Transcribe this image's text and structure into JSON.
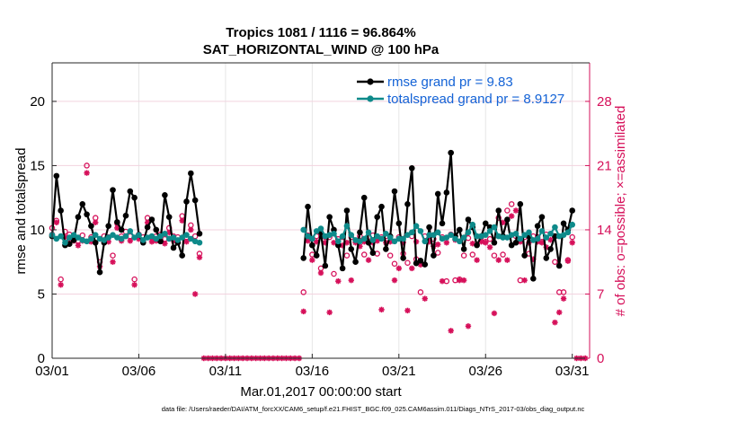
{
  "chart_data": {
    "type": "line",
    "title": "Tropics 1081 / 1116 = 96.864%",
    "subtitle": "SAT_HORIZONTAL_WIND @ 100 hPa",
    "xlabel": "Mar.01,2017 00:00:00 start",
    "ylabel": "rmse and totalspread",
    "y2label": "# of obs: o=possible; ×=assimilated",
    "footnote": "data file: /Users/raeder/DAI/ATM_forcXX/CAM6_setup/f.e21.FHIST_BGC.f09_025.CAM6assim.011/Diags_NTrS_2017-03/obs_diag_output.nc",
    "xticks": [
      1,
      6,
      11,
      16,
      21,
      26,
      31
    ],
    "xtick_labels": [
      "03/01",
      "03/06",
      "03/11",
      "03/16",
      "03/21",
      "03/26",
      "03/31"
    ],
    "xlim": [
      1,
      32
    ],
    "ylim": [
      0,
      23
    ],
    "yticks": [
      0,
      5,
      10,
      15,
      20
    ],
    "y2lim": [
      0,
      32.2
    ],
    "y2ticks": [
      0,
      7,
      14,
      21,
      28
    ],
    "legend": {
      "location": "top-right",
      "entries": [
        "rmse grand pr = 9.83",
        "totalspread grand pr = 8.9127"
      ]
    },
    "colors": {
      "rmse": "#000000",
      "spread": "#0e8a8a",
      "obs": "#d6105a",
      "legend_text": "#1463d6"
    },
    "series": [
      {
        "name": "rmse",
        "x": [
          1.0,
          1.25,
          1.5,
          1.75,
          2.0,
          2.25,
          2.5,
          2.75,
          3.0,
          3.25,
          3.5,
          3.75,
          4.0,
          4.25,
          4.5,
          4.75,
          5.0,
          5.25,
          5.5,
          5.75,
          6.0,
          6.25,
          6.5,
          6.75,
          7.0,
          7.25,
          7.5,
          7.75,
          8.0,
          8.25,
          8.5,
          8.75,
          9.0,
          9.25,
          9.5
        ],
        "values": [
          9.5,
          14.2,
          11.5,
          8.8,
          8.9,
          9.2,
          11.0,
          12.0,
          11.2,
          10.3,
          9.0,
          6.7,
          9.0,
          10.3,
          13.1,
          10.6,
          10.0,
          11.1,
          13.0,
          12.5,
          9.6,
          9.0,
          10.2,
          10.8,
          10.0,
          9.1,
          12.7,
          11.0,
          8.6,
          9.0,
          8.0,
          12.2,
          14.4,
          12.3,
          9.7
        ],
        "segments": [
          [
            0,
            34
          ]
        ]
      },
      {
        "name": "totalspread",
        "x": [
          1.0,
          1.25,
          1.5,
          1.75,
          2.0,
          2.25,
          2.5,
          2.75,
          3.0,
          3.25,
          3.5,
          3.75,
          4.0,
          4.25,
          4.5,
          4.75,
          5.0,
          5.25,
          5.5,
          5.75,
          6.0,
          6.25,
          6.5,
          6.75,
          7.0,
          7.25,
          7.5,
          7.75,
          8.0,
          8.25,
          8.5,
          8.75,
          9.0,
          9.25,
          9.5
        ],
        "values": [
          9.6,
          9.3,
          9.5,
          9.0,
          9.4,
          9.6,
          9.4,
          9.2,
          9.1,
          9.3,
          9.6,
          9.3,
          9.2,
          9.4,
          9.6,
          9.4,
          9.3,
          9.5,
          9.9,
          9.4,
          9.6,
          9.2,
          9.4,
          9.5,
          9.3,
          9.5,
          9.7,
          9.3,
          9.4,
          9.2,
          9.4,
          9.6,
          9.3,
          9.1,
          9.0
        ],
        "segments": [
          [
            0,
            34
          ]
        ]
      },
      {
        "name": "rmse",
        "x": [
          15.5,
          15.75,
          16.0,
          16.25,
          16.5,
          16.75,
          17.0,
          17.25,
          17.5,
          17.75,
          18.0,
          18.25,
          18.5,
          18.75,
          19.0,
          19.25,
          19.5,
          19.75,
          20.0,
          20.25,
          20.5,
          20.75,
          21.0,
          21.25,
          21.5,
          21.75,
          22.0,
          22.25,
          22.5,
          22.75,
          23.0,
          23.25,
          23.5,
          23.75,
          24.0,
          24.25,
          24.5,
          24.75,
          25.0,
          25.25,
          25.5,
          25.75,
          26.0,
          26.25,
          26.5,
          26.75,
          27.0,
          27.25,
          27.5,
          27.75,
          28.0,
          28.25,
          28.5,
          28.75,
          29.0,
          29.25,
          29.5,
          29.75,
          30.0,
          30.25,
          30.5,
          30.75,
          31.0
        ],
        "values": [
          7.8,
          11.8,
          8.8,
          8.0,
          9.8,
          7.2,
          11.0,
          10.0,
          8.8,
          7.0,
          11.5,
          8.5,
          7.5,
          9.8,
          12.5,
          9.0,
          8.2,
          11.0,
          11.8,
          8.5,
          9.5,
          13.0,
          10.5,
          7.8,
          12.0,
          14.8,
          7.4,
          7.6,
          7.3,
          10.2,
          8.0,
          12.8,
          10.5,
          12.9,
          16.0,
          9.5,
          10.0,
          8.5,
          10.8,
          10.2,
          8.8,
          9.5,
          10.5,
          10.2,
          9.0,
          11.5,
          9.5,
          10.8,
          8.8,
          9.0,
          12.0,
          8.0,
          9.5,
          6.2,
          10.3,
          11.0,
          7.8,
          8.5,
          9.5,
          7.2,
          10.5,
          10.0,
          11.5
        ],
        "segments": [
          [
            0,
            62
          ]
        ]
      },
      {
        "name": "totalspread",
        "x": [
          15.5,
          15.75,
          16.0,
          16.25,
          16.5,
          16.75,
          17.0,
          17.25,
          17.5,
          17.75,
          18.0,
          18.25,
          18.5,
          18.75,
          19.0,
          19.25,
          19.5,
          19.75,
          20.0,
          20.25,
          20.5,
          20.75,
          21.0,
          21.25,
          21.5,
          21.75,
          22.0,
          22.25,
          22.5,
          22.75,
          23.0,
          23.25,
          23.5,
          23.75,
          24.0,
          24.25,
          24.5,
          24.75,
          25.0,
          25.25,
          25.5,
          25.75,
          26.0,
          26.25,
          26.5,
          26.75,
          27.0,
          27.25,
          27.5,
          27.75,
          28.0,
          28.25,
          28.5,
          28.75,
          29.0,
          29.25,
          29.5,
          29.75,
          30.0,
          30.25,
          30.5,
          30.75,
          31.0
        ],
        "values": [
          10.0,
          9.5,
          9.3,
          9.9,
          10.1,
          9.5,
          9.6,
          9.7,
          9.1,
          9.5,
          10.3,
          9.6,
          9.2,
          9.1,
          9.3,
          9.8,
          9.2,
          9.5,
          9.3,
          9.7,
          9.4,
          9.1,
          9.3,
          9.3,
          9.6,
          9.8,
          10.3,
          9.9,
          9.1,
          9.6,
          9.6,
          9.8,
          9.3,
          9.4,
          9.6,
          9.3,
          9.1,
          9.4,
          9.8,
          10.4,
          9.5,
          9.5,
          9.6,
          9.9,
          10.2,
          9.5,
          9.4,
          9.4,
          9.6,
          9.7,
          9.3,
          9.6,
          9.8,
          9.2,
          9.3,
          9.9,
          9.4,
          9.7,
          10.2,
          9.5,
          9.6,
          9.8,
          10.4
        ],
        "segments": [
          [
            0,
            62
          ]
        ]
      }
    ],
    "obs_possible": {
      "x": [
        1.0,
        1.25,
        1.5,
        1.75,
        2.0,
        2.25,
        2.5,
        2.75,
        3.0,
        3.25,
        3.5,
        3.75,
        4.0,
        4.25,
        4.5,
        4.75,
        5.0,
        5.25,
        5.5,
        5.75,
        6.0,
        6.25,
        6.5,
        6.75,
        7.0,
        7.25,
        7.5,
        7.75,
        8.0,
        8.25,
        8.5,
        8.75,
        9.0,
        9.25,
        9.5,
        15.5,
        15.75,
        16.0,
        16.25,
        16.5,
        16.75,
        17.0,
        17.25,
        17.5,
        17.75,
        18.0,
        18.25,
        18.5,
        18.75,
        19.0,
        19.25,
        19.5,
        19.75,
        20.0,
        20.25,
        20.5,
        20.75,
        21.0,
        21.25,
        21.5,
        21.75,
        22.0,
        22.25,
        22.5,
        22.75,
        23.0,
        23.25,
        23.5,
        23.75,
        24.0,
        24.25,
        24.5,
        24.75,
        25.0,
        25.25,
        25.5,
        25.75,
        26.0,
        26.25,
        26.5,
        26.75,
        27.0,
        27.25,
        27.5,
        27.75,
        28.0,
        28.25,
        28.5,
        28.75,
        29.0,
        29.25,
        29.5,
        29.75,
        30.0,
        30.25,
        30.5,
        30.75,
        31.0
      ],
      "values": [
        14.2,
        15.0,
        8.6,
        13.8,
        13.5,
        13.3,
        12.8,
        13.4,
        21.0,
        13.2,
        15.3,
        10.5,
        13.3,
        13.2,
        11.2,
        14.7,
        13.3,
        13.8,
        13.3,
        8.6,
        13.5,
        13.2,
        15.3,
        13.2,
        13.3,
        13.5,
        13.0,
        14.2,
        13.3,
        13.2,
        15.5,
        13.2,
        14.5,
        13.3,
        11.4,
        7.2,
        13.4,
        11.3,
        13.3,
        9.8,
        13.2,
        13.2,
        9.2,
        13.0,
        13.2,
        11.2,
        13.2,
        12.8,
        13.3,
        11.3,
        13.2,
        13.4,
        11.4,
        13.2,
        13.3,
        11.2,
        10.3,
        13.2,
        11.4,
        10.4,
        13.3,
        10.8,
        7.2,
        13.3,
        12.8,
        13.0,
        11.5,
        13.2,
        8.4,
        13.5,
        8.5,
        8.6,
        11.2,
        13.1,
        11.3,
        13.3,
        13.2,
        12.7,
        13.0,
        11.2,
        15.3,
        11.3,
        16.1,
        16.8,
        13.3,
        8.5,
        13.2,
        11.4,
        13.3,
        13.2,
        12.7,
        13.5,
        13.3,
        10.5,
        7.2,
        7.2,
        10.7,
        13.2
      ],
      "segments": [
        [
          0,
          34
        ],
        [
          35,
          97
        ]
      ]
    },
    "obs_assimilated": {
      "x": [
        1.0,
        1.25,
        1.5,
        1.75,
        2.0,
        2.25,
        2.5,
        2.75,
        3.0,
        3.25,
        3.5,
        3.75,
        4.0,
        4.25,
        4.5,
        4.75,
        5.0,
        5.25,
        5.5,
        5.75,
        6.0,
        6.25,
        6.5,
        6.75,
        7.0,
        7.25,
        7.5,
        7.75,
        8.0,
        8.25,
        8.5,
        8.75,
        9.0,
        9.25,
        9.5,
        9.75,
        10.0,
        10.25,
        10.5,
        10.75,
        11.0,
        11.25,
        11.5,
        11.75,
        12.0,
        12.25,
        12.5,
        12.75,
        13.0,
        13.25,
        13.5,
        13.75,
        14.0,
        14.25,
        14.5,
        14.75,
        15.0,
        15.25,
        15.5,
        15.75,
        16.0,
        16.25,
        16.5,
        16.75,
        17.0,
        17.25,
        17.5,
        17.75,
        18.0,
        18.25,
        18.5,
        18.75,
        19.0,
        19.25,
        19.5,
        19.75,
        20.0,
        20.25,
        20.5,
        20.75,
        21.0,
        21.25,
        21.5,
        21.75,
        22.0,
        22.25,
        22.5,
        22.75,
        23.0,
        23.25,
        23.5,
        23.75,
        24.0,
        24.25,
        24.5,
        24.75,
        25.0,
        25.25,
        25.5,
        25.75,
        26.0,
        26.25,
        26.5,
        26.75,
        27.0,
        27.25,
        27.5,
        27.75,
        28.0,
        28.25,
        28.5,
        28.75,
        29.0,
        29.25,
        29.5,
        29.75,
        30.0,
        30.25,
        30.5,
        30.75,
        31.0,
        31.25,
        31.5,
        31.75
      ],
      "values": [
        13.5,
        14.8,
        8.0,
        13.2,
        13.0,
        12.8,
        12.3,
        12.8,
        20.2,
        12.7,
        14.8,
        10.0,
        12.8,
        12.7,
        10.5,
        14.2,
        12.8,
        13.3,
        12.8,
        8.0,
        13.0,
        12.7,
        14.8,
        12.7,
        12.8,
        13.0,
        12.5,
        13.7,
        12.8,
        12.7,
        15.0,
        12.7,
        14.0,
        7.0,
        11.0,
        0.0,
        0.0,
        0.0,
        0.0,
        0.0,
        0.0,
        0.0,
        0.0,
        0.0,
        0.0,
        0.0,
        0.0,
        0.0,
        0.0,
        0.0,
        0.0,
        0.0,
        0.0,
        0.0,
        0.0,
        0.0,
        0.0,
        0.0,
        5.1,
        12.8,
        10.7,
        12.7,
        9.3,
        12.6,
        5.0,
        12.6,
        8.4,
        12.3,
        12.6,
        8.5,
        12.6,
        12.2,
        12.7,
        10.7,
        12.6,
        12.8,
        5.3,
        12.6,
        12.7,
        8.5,
        9.8,
        12.6,
        5.2,
        9.8,
        12.7,
        10.2,
        6.5,
        12.7,
        12.2,
        12.4,
        8.4,
        12.6,
        3.0,
        12.9,
        8.5,
        8.5,
        3.5,
        12.5,
        10.7,
        12.7,
        12.6,
        12.1,
        4.9,
        10.7,
        14.8,
        10.7,
        15.5,
        16.1,
        12.7,
        8.5,
        12.6,
        10.8,
        12.7,
        12.6,
        12.1,
        12.9,
        3.9,
        5.0,
        6.5,
        10.6,
        12.6,
        0.0,
        0.0,
        0.0
      ]
    }
  }
}
